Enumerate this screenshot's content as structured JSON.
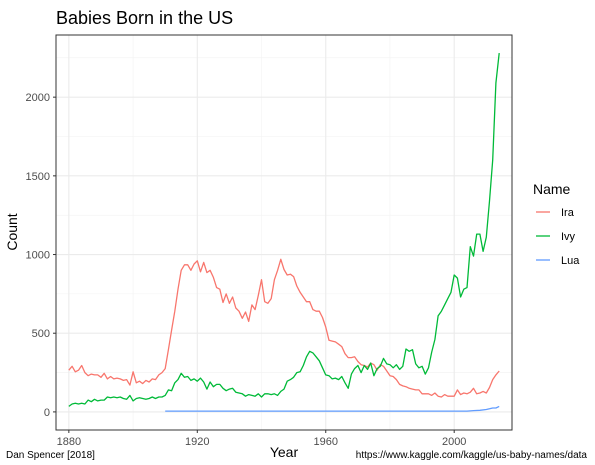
{
  "chart_data": {
    "type": "line",
    "title": "Babies Born in the US",
    "xlabel": "Year",
    "ylabel": "Count",
    "xlim": [
      1876,
      2018
    ],
    "ylim": [
      -115,
      2395
    ],
    "x_ticks": [
      1880,
      1920,
      1960,
      2000
    ],
    "y_ticks": [
      0,
      500,
      1000,
      1500,
      2000
    ],
    "grid": true,
    "legend_title": "Name",
    "legend_position": "right",
    "caption_left": "Dan Spencer [2018]",
    "caption_right": "https://www.kaggle.com/kaggle/us-baby-names/data",
    "series": [
      {
        "name": "Ira",
        "color": "#F8766D",
        "points": [
          [
            1880,
            265
          ],
          [
            1881,
            290
          ],
          [
            1882,
            255
          ],
          [
            1883,
            265
          ],
          [
            1884,
            295
          ],
          [
            1885,
            250
          ],
          [
            1886,
            230
          ],
          [
            1887,
            240
          ],
          [
            1888,
            235
          ],
          [
            1889,
            235
          ],
          [
            1890,
            220
          ],
          [
            1891,
            245
          ],
          [
            1892,
            210
          ],
          [
            1893,
            225
          ],
          [
            1894,
            210
          ],
          [
            1895,
            215
          ],
          [
            1896,
            210
          ],
          [
            1897,
            200
          ],
          [
            1898,
            205
          ],
          [
            1899,
            170
          ],
          [
            1900,
            255
          ],
          [
            1901,
            185
          ],
          [
            1902,
            195
          ],
          [
            1903,
            180
          ],
          [
            1904,
            200
          ],
          [
            1905,
            190
          ],
          [
            1906,
            210
          ],
          [
            1907,
            205
          ],
          [
            1908,
            235
          ],
          [
            1909,
            250
          ],
          [
            1910,
            275
          ],
          [
            1911,
            395
          ],
          [
            1912,
            520
          ],
          [
            1913,
            640
          ],
          [
            1914,
            780
          ],
          [
            1915,
            900
          ],
          [
            1916,
            935
          ],
          [
            1917,
            935
          ],
          [
            1918,
            900
          ],
          [
            1919,
            940
          ],
          [
            1920,
            960
          ],
          [
            1921,
            890
          ],
          [
            1922,
            950
          ],
          [
            1923,
            885
          ],
          [
            1924,
            900
          ],
          [
            1925,
            855
          ],
          [
            1926,
            790
          ],
          [
            1927,
            780
          ],
          [
            1928,
            695
          ],
          [
            1929,
            750
          ],
          [
            1930,
            690
          ],
          [
            1931,
            730
          ],
          [
            1932,
            660
          ],
          [
            1933,
            640
          ],
          [
            1934,
            595
          ],
          [
            1935,
            635
          ],
          [
            1936,
            575
          ],
          [
            1937,
            680
          ],
          [
            1938,
            650
          ],
          [
            1939,
            740
          ],
          [
            1940,
            840
          ],
          [
            1941,
            700
          ],
          [
            1942,
            690
          ],
          [
            1943,
            720
          ],
          [
            1944,
            840
          ],
          [
            1945,
            900
          ],
          [
            1946,
            970
          ],
          [
            1947,
            905
          ],
          [
            1948,
            870
          ],
          [
            1949,
            875
          ],
          [
            1950,
            860
          ],
          [
            1951,
            800
          ],
          [
            1952,
            760
          ],
          [
            1953,
            730
          ],
          [
            1954,
            700
          ],
          [
            1955,
            700
          ],
          [
            1956,
            650
          ],
          [
            1957,
            640
          ],
          [
            1958,
            640
          ],
          [
            1959,
            600
          ],
          [
            1960,
            540
          ],
          [
            1961,
            455
          ],
          [
            1962,
            450
          ],
          [
            1963,
            445
          ],
          [
            1964,
            430
          ],
          [
            1965,
            415
          ],
          [
            1966,
            370
          ],
          [
            1967,
            345
          ],
          [
            1968,
            345
          ],
          [
            1969,
            350
          ],
          [
            1970,
            320
          ],
          [
            1971,
            300
          ],
          [
            1972,
            295
          ],
          [
            1973,
            285
          ],
          [
            1974,
            310
          ],
          [
            1975,
            300
          ],
          [
            1976,
            265
          ],
          [
            1977,
            300
          ],
          [
            1978,
            290
          ],
          [
            1979,
            260
          ],
          [
            1980,
            230
          ],
          [
            1981,
            225
          ],
          [
            1982,
            205
          ],
          [
            1983,
            175
          ],
          [
            1984,
            165
          ],
          [
            1985,
            160
          ],
          [
            1986,
            150
          ],
          [
            1987,
            145
          ],
          [
            1988,
            140
          ],
          [
            1989,
            140
          ],
          [
            1990,
            115
          ],
          [
            1991,
            115
          ],
          [
            1992,
            115
          ],
          [
            1993,
            105
          ],
          [
            1994,
            120
          ],
          [
            1995,
            100
          ],
          [
            1996,
            95
          ],
          [
            1997,
            110
          ],
          [
            1998,
            100
          ],
          [
            1999,
            100
          ],
          [
            2000,
            100
          ],
          [
            2001,
            140
          ],
          [
            2002,
            110
          ],
          [
            2003,
            120
          ],
          [
            2004,
            115
          ],
          [
            2005,
            125
          ],
          [
            2006,
            150
          ],
          [
            2007,
            115
          ],
          [
            2008,
            120
          ],
          [
            2009,
            130
          ],
          [
            2010,
            120
          ],
          [
            2011,
            155
          ],
          [
            2012,
            205
          ],
          [
            2013,
            235
          ],
          [
            2014,
            260
          ]
        ]
      },
      {
        "name": "Ivy",
        "color": "#00BA38",
        "points": [
          [
            1880,
            35
          ],
          [
            1881,
            50
          ],
          [
            1882,
            55
          ],
          [
            1883,
            50
          ],
          [
            1884,
            55
          ],
          [
            1885,
            50
          ],
          [
            1886,
            75
          ],
          [
            1887,
            65
          ],
          [
            1888,
            80
          ],
          [
            1889,
            70
          ],
          [
            1890,
            75
          ],
          [
            1891,
            75
          ],
          [
            1892,
            95
          ],
          [
            1893,
            90
          ],
          [
            1894,
            95
          ],
          [
            1895,
            90
          ],
          [
            1896,
            95
          ],
          [
            1897,
            85
          ],
          [
            1898,
            80
          ],
          [
            1899,
            105
          ],
          [
            1900,
            70
          ],
          [
            1901,
            85
          ],
          [
            1902,
            90
          ],
          [
            1903,
            85
          ],
          [
            1904,
            80
          ],
          [
            1905,
            85
          ],
          [
            1906,
            95
          ],
          [
            1907,
            85
          ],
          [
            1908,
            95
          ],
          [
            1909,
            95
          ],
          [
            1910,
            105
          ],
          [
            1911,
            140
          ],
          [
            1912,
            135
          ],
          [
            1913,
            185
          ],
          [
            1914,
            205
          ],
          [
            1915,
            245
          ],
          [
            1916,
            220
          ],
          [
            1917,
            225
          ],
          [
            1918,
            200
          ],
          [
            1919,
            210
          ],
          [
            1920,
            195
          ],
          [
            1921,
            215
          ],
          [
            1922,
            190
          ],
          [
            1923,
            145
          ],
          [
            1924,
            190
          ],
          [
            1925,
            160
          ],
          [
            1926,
            175
          ],
          [
            1927,
            175
          ],
          [
            1928,
            150
          ],
          [
            1929,
            135
          ],
          [
            1930,
            145
          ],
          [
            1931,
            150
          ],
          [
            1932,
            125
          ],
          [
            1933,
            120
          ],
          [
            1934,
            115
          ],
          [
            1935,
            100
          ],
          [
            1936,
            110
          ],
          [
            1937,
            105
          ],
          [
            1938,
            100
          ],
          [
            1939,
            115
          ],
          [
            1940,
            95
          ],
          [
            1941,
            115
          ],
          [
            1942,
            115
          ],
          [
            1943,
            110
          ],
          [
            1944,
            115
          ],
          [
            1945,
            105
          ],
          [
            1946,
            130
          ],
          [
            1947,
            145
          ],
          [
            1948,
            195
          ],
          [
            1949,
            205
          ],
          [
            1950,
            220
          ],
          [
            1951,
            250
          ],
          [
            1952,
            255
          ],
          [
            1953,
            295
          ],
          [
            1954,
            350
          ],
          [
            1955,
            385
          ],
          [
            1956,
            375
          ],
          [
            1957,
            350
          ],
          [
            1958,
            325
          ],
          [
            1959,
            280
          ],
          [
            1960,
            235
          ],
          [
            1961,
            230
          ],
          [
            1962,
            210
          ],
          [
            1963,
            215
          ],
          [
            1964,
            205
          ],
          [
            1965,
            225
          ],
          [
            1966,
            185
          ],
          [
            1967,
            150
          ],
          [
            1968,
            240
          ],
          [
            1969,
            275
          ],
          [
            1970,
            295
          ],
          [
            1971,
            250
          ],
          [
            1972,
            295
          ],
          [
            1973,
            270
          ],
          [
            1974,
            310
          ],
          [
            1975,
            230
          ],
          [
            1976,
            275
          ],
          [
            1977,
            290
          ],
          [
            1978,
            340
          ],
          [
            1979,
            305
          ],
          [
            1980,
            300
          ],
          [
            1981,
            280
          ],
          [
            1982,
            300
          ],
          [
            1983,
            270
          ],
          [
            1984,
            290
          ],
          [
            1985,
            400
          ],
          [
            1986,
            385
          ],
          [
            1987,
            395
          ],
          [
            1988,
            305
          ],
          [
            1989,
            280
          ],
          [
            1990,
            290
          ],
          [
            1991,
            240
          ],
          [
            1992,
            280
          ],
          [
            1993,
            380
          ],
          [
            1994,
            460
          ],
          [
            1995,
            610
          ],
          [
            1996,
            640
          ],
          [
            1997,
            680
          ],
          [
            1998,
            720
          ],
          [
            1999,
            760
          ],
          [
            2000,
            870
          ],
          [
            2001,
            850
          ],
          [
            2002,
            730
          ],
          [
            2003,
            780
          ],
          [
            2004,
            790
          ],
          [
            2005,
            1050
          ],
          [
            2006,
            990
          ],
          [
            2007,
            1130
          ],
          [
            2008,
            1130
          ],
          [
            2009,
            1020
          ],
          [
            2010,
            1110
          ],
          [
            2011,
            1340
          ],
          [
            2012,
            1600
          ],
          [
            2013,
            2090
          ],
          [
            2014,
            2280
          ]
        ]
      },
      {
        "name": "Lua",
        "color": "#619CFF",
        "points": [
          [
            1910,
            5
          ],
          [
            1920,
            5
          ],
          [
            1930,
            5
          ],
          [
            1940,
            5
          ],
          [
            1950,
            5
          ],
          [
            1960,
            5
          ],
          [
            1970,
            5
          ],
          [
            1980,
            5
          ],
          [
            1990,
            5
          ],
          [
            2000,
            5
          ],
          [
            2004,
            5
          ],
          [
            2006,
            8
          ],
          [
            2008,
            10
          ],
          [
            2010,
            15
          ],
          [
            2011,
            20
          ],
          [
            2012,
            25
          ],
          [
            2013,
            25
          ],
          [
            2014,
            35
          ]
        ]
      }
    ]
  }
}
